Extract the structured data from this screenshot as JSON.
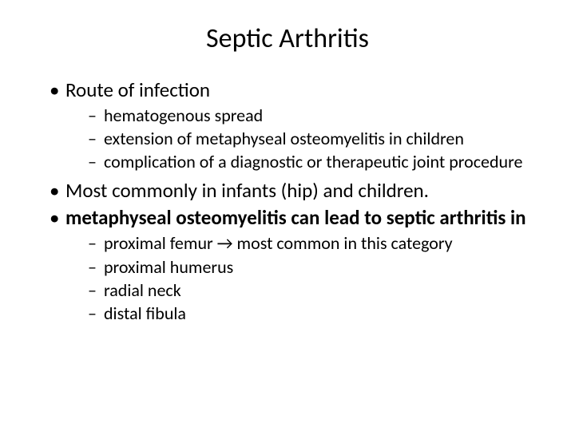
{
  "slide": {
    "title": "Septic Arthritis",
    "title_fontsize": 34,
    "level1_fontsize": 25,
    "level2_fontsize": 22,
    "background_color": "#ffffff",
    "text_color": "#000000",
    "arrow_glyph": "→",
    "bullets": [
      {
        "text": "Route of infection",
        "bold": false,
        "children": [
          {
            "text": "hematogenous spread"
          },
          {
            "text": "extension of metaphyseal osteomyelitis in children"
          },
          {
            "text": "complication of a diagnostic or therapeutic joint procedure"
          }
        ]
      },
      {
        "text": "Most commonly in infants (hip) and children.",
        "bold": false,
        "children": []
      },
      {
        "text": "metaphyseal osteomyelitis can lead to septic arthritis in",
        "bold": true,
        "children": [
          {
            "text": "proximal femur → most common in this category"
          },
          {
            "text": "proximal humerus"
          },
          {
            "text": "radial neck"
          },
          {
            "text": "distal fibula"
          }
        ]
      }
    ]
  }
}
